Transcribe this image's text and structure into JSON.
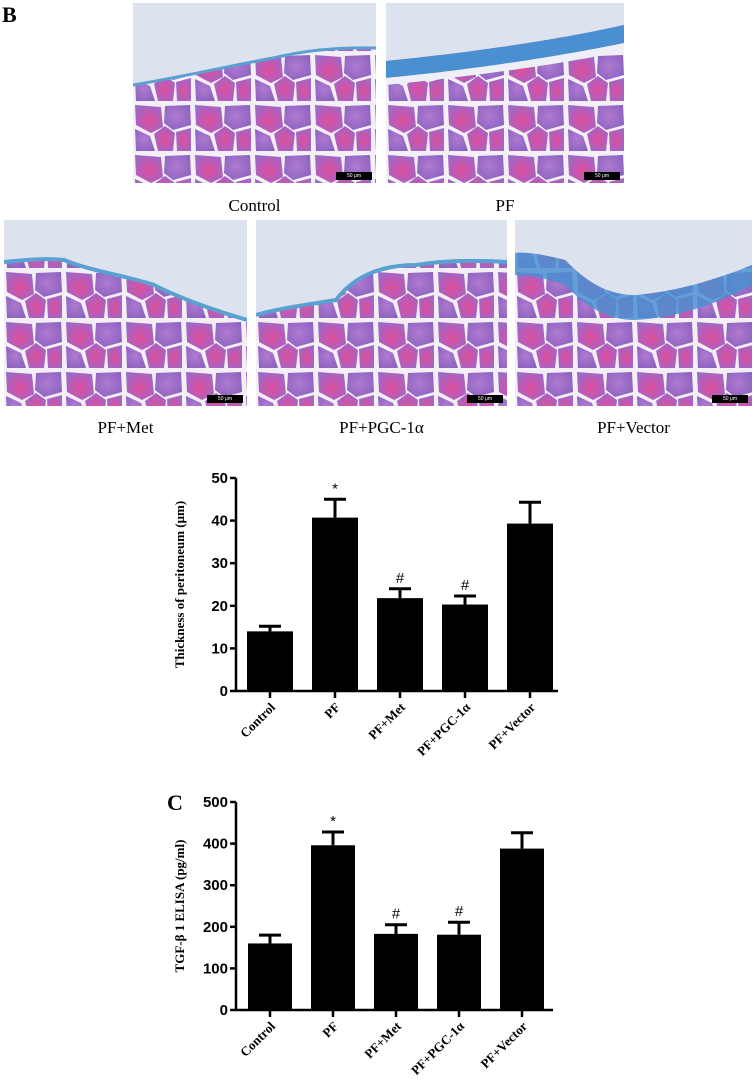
{
  "panel_b": {
    "letter": "B",
    "images": [
      {
        "label": "Control",
        "scale_bar": "50 μm"
      },
      {
        "label": "PF",
        "scale_bar": "50 μm"
      },
      {
        "label": "PF+Met",
        "scale_bar": "50 μm"
      },
      {
        "label": "PF+PGC-1α",
        "scale_bar": "50 μm"
      },
      {
        "label": "PF+Vector",
        "scale_bar": "50 μm"
      }
    ]
  },
  "panel_c": {
    "letter": "C"
  },
  "colors": {
    "bar": "#000000",
    "tissue_pink": "#d9469a",
    "tissue_purple": "#9a6cc4",
    "collagen_blue": "#4a8fd0",
    "background_lumen": "#dde3ee"
  },
  "chart_data": [
    {
      "type": "bar",
      "title": "",
      "xlabel": "",
      "ylabel": "Thickness of peritoneum (μm)",
      "categories": [
        "Control",
        "PF",
        "PF+Met",
        "PF+PGC-1α",
        "PF+Vector"
      ],
      "values": [
        14,
        40.7,
        21.8,
        20.3,
        39.3
      ],
      "error": [
        1.2,
        4.3,
        2.2,
        2.0,
        5.0
      ],
      "annotations": [
        "",
        "*",
        "#",
        "#",
        ""
      ],
      "ylim": [
        0,
        50
      ],
      "yticks": [
        0,
        10,
        20,
        30,
        40,
        50
      ],
      "grid": false,
      "legend": null
    },
    {
      "type": "bar",
      "title": "",
      "xlabel": "",
      "ylabel": "TGF-β 1 ELISA (pg/ml)",
      "categories": [
        "Control",
        "PF",
        "PF+Met",
        "PF+PGC-1α",
        "PF+Vector"
      ],
      "values": [
        160,
        396,
        183,
        181,
        388
      ],
      "error": [
        20,
        32,
        22,
        30,
        38
      ],
      "annotations": [
        "",
        "*",
        "#",
        "#",
        ""
      ],
      "ylim": [
        0,
        500
      ],
      "yticks": [
        0,
        100,
        200,
        300,
        400,
        500
      ],
      "grid": false,
      "legend": null
    }
  ]
}
